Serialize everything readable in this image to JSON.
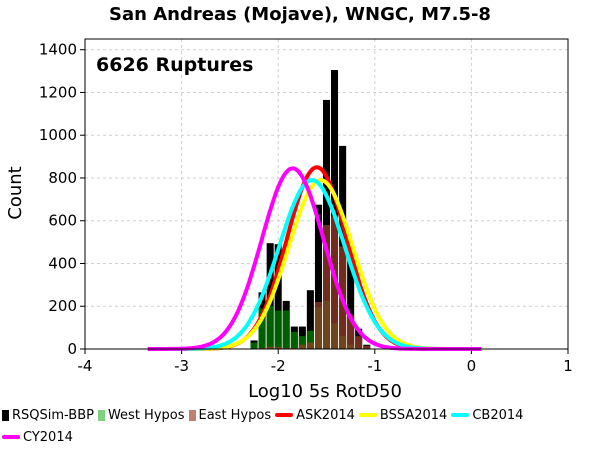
{
  "chart_data": {
    "type": "bar",
    "title": "San Andreas (Mojave), WNGC, M7.5-8",
    "annotation": "6626 Ruptures",
    "xlabel": "Log10 5s RotD50",
    "ylabel": "Count",
    "xlim": [
      -4,
      1
    ],
    "ylim": [
      0,
      1450
    ],
    "xticks": [
      "-4",
      "-3",
      "-2",
      "-1",
      "0",
      "1"
    ],
    "yticks": [
      "0",
      "200",
      "400",
      "600",
      "800",
      "1000",
      "1200",
      "1400"
    ],
    "grid": true,
    "legend_position": "bottom",
    "bin_width": 0.0833,
    "histograms": [
      {
        "name": "RSQSim-BBP",
        "color": "#000000",
        "x": [
          -2.25,
          -2.167,
          -2.083,
          -2.0,
          -1.917,
          -1.833,
          -1.75,
          -1.667,
          -1.583,
          -1.5,
          -1.417,
          -1.333,
          -1.25,
          -1.167,
          -1.083
        ],
        "values": [
          40,
          265,
          495,
          490,
          225,
          105,
          105,
          275,
          675,
          1165,
          1305,
          950,
          415,
          95,
          20
        ]
      },
      {
        "name": "West Hypos",
        "color": "#2a8a2a",
        "x": [
          -2.25,
          -2.167,
          -2.083,
          -2.0,
          -1.917,
          -1.833,
          -1.75,
          -1.667,
          -1.583,
          -1.5,
          -1.417,
          -1.333,
          -1.25,
          -1.167
        ],
        "values": [
          30,
          190,
          200,
          180,
          180,
          80,
          60,
          85,
          195,
          225,
          120,
          60,
          20,
          5
        ]
      },
      {
        "name": "East Hypos",
        "color": "#8b3a2a",
        "x": [
          -2.25,
          -2.167,
          -2.083,
          -2.0,
          -1.917,
          -1.833,
          -1.75,
          -1.667,
          -1.583,
          -1.5,
          -1.417,
          -1.333,
          -1.25,
          -1.167,
          -1.083
        ],
        "values": [
          0,
          5,
          10,
          10,
          5,
          5,
          20,
          30,
          220,
          580,
          620,
          480,
          160,
          60,
          15
        ]
      }
    ],
    "series": [
      {
        "name": "ASK2014",
        "color": "#ff0000",
        "mu": -1.6,
        "sigma": 0.31,
        "peak": 850
      },
      {
        "name": "BSSA2014",
        "color": "#ffff00",
        "mu": -1.56,
        "sigma": 0.33,
        "peak": 790
      },
      {
        "name": "CB2014",
        "color": "#00ffff",
        "mu": -1.65,
        "sigma": 0.34,
        "peak": 790
      },
      {
        "name": "CY2014",
        "color": "#ff00ff",
        "mu": -1.85,
        "sigma": 0.32,
        "peak": 845
      }
    ],
    "legend_labels": [
      "RSQSim-BBP",
      "West Hypos",
      "East Hypos",
      "ASK2014",
      "BSSA2014",
      "CB2014",
      "CY2014"
    ]
  }
}
